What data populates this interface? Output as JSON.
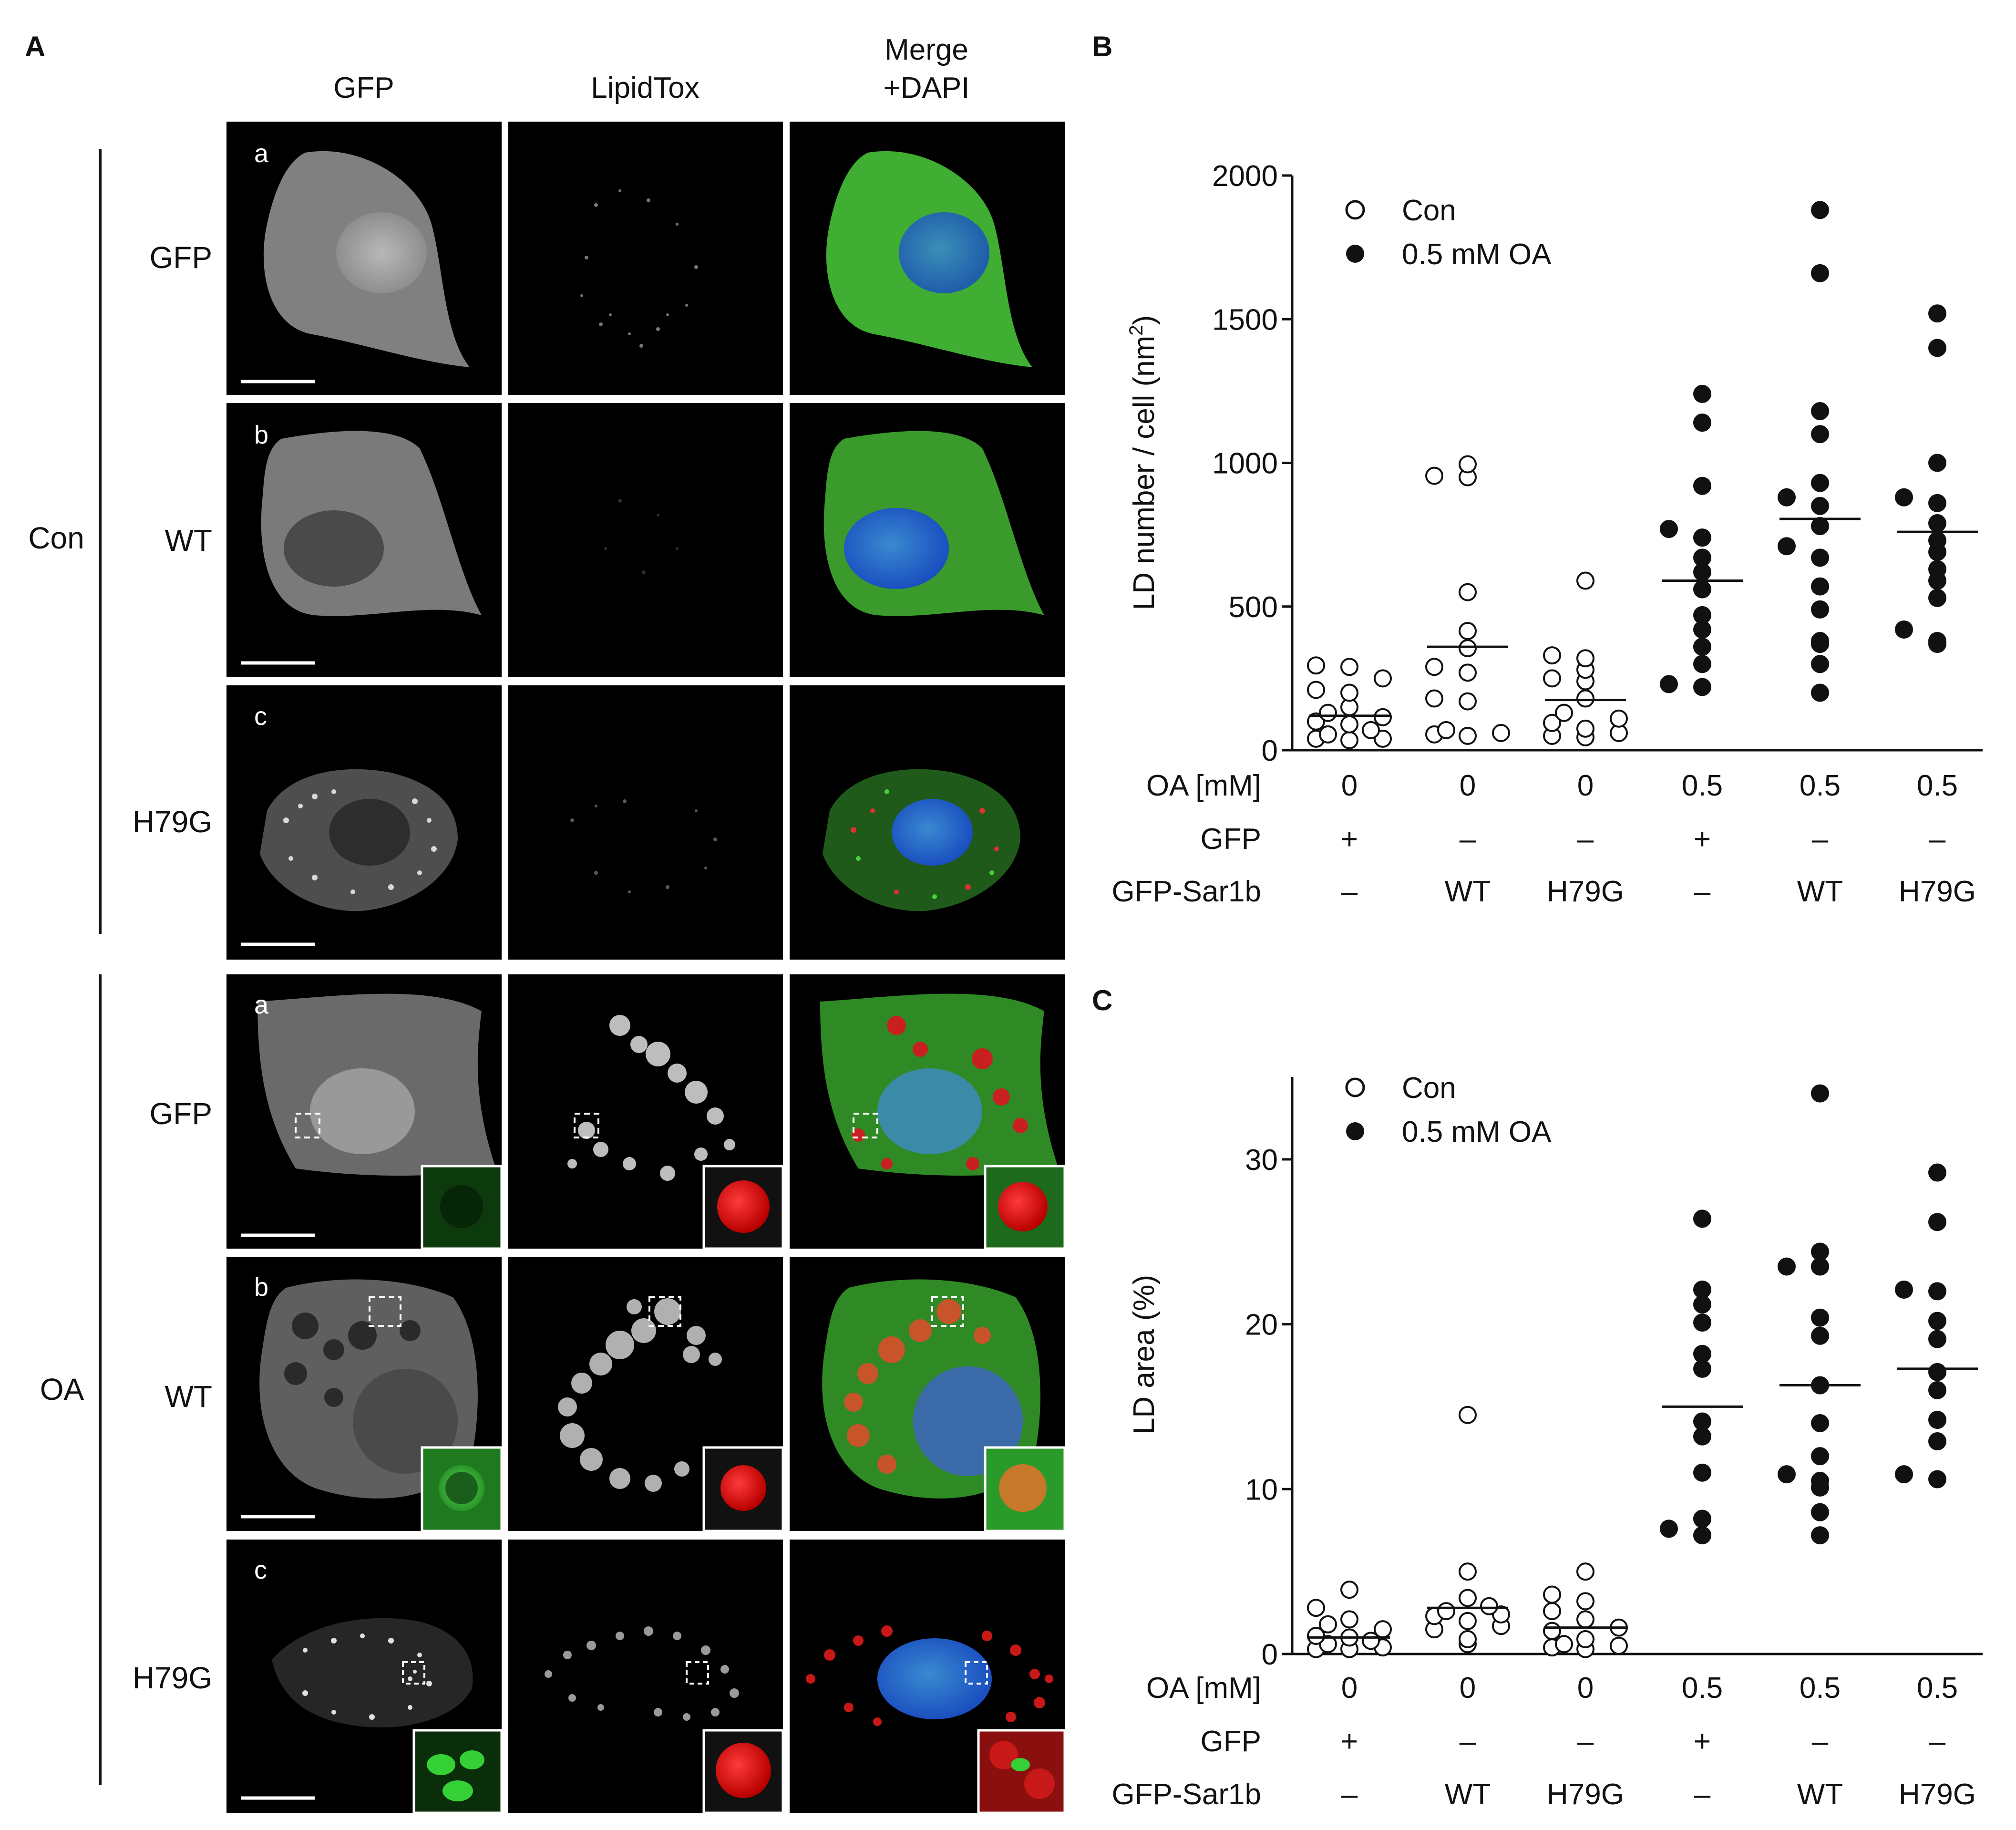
{
  "panelA": {
    "letter": "A",
    "col_headers": [
      "GFP",
      "LipidTox",
      "Merge +DAPI"
    ],
    "merge_header_lines": [
      "Merge",
      "+DAPI"
    ],
    "groups": [
      {
        "label": "Con",
        "rows": [
          {
            "sub": "a",
            "name": "GFP",
            "cell": "gfp_con"
          },
          {
            "sub": "b",
            "name": "WT",
            "cell": "wt_con"
          },
          {
            "sub": "c",
            "name": "H79G",
            "cell": "h79g_con"
          }
        ]
      },
      {
        "label": "OA",
        "rows": [
          {
            "sub": "a",
            "name": "GFP",
            "cell": "gfp_oa"
          },
          {
            "sub": "b",
            "name": "WT",
            "cell": "wt_oa"
          },
          {
            "sub": "c",
            "name": "H79G",
            "cell": "h79g_oa"
          }
        ]
      }
    ]
  },
  "chart_data": [
    {
      "panel": "B",
      "type": "scatter",
      "ylabel": "LD number / cell (nm²)",
      "ylabel_main": "LD number / cell (nm",
      "ylabel_sup": "2",
      "ylabel_close": ")",
      "ylim": [
        0,
        2000
      ],
      "yticks": [
        0,
        500,
        1000,
        1500,
        2000
      ],
      "legend": [
        "Con",
        "0.5 mM OA"
      ],
      "legend_position": "top-left",
      "table_rows": [
        {
          "label": "OA [mM]",
          "values": [
            "0",
            "0",
            "0",
            "0.5",
            "0.5",
            "0.5"
          ]
        },
        {
          "label": "GFP",
          "values": [
            "+",
            "–",
            "–",
            "+",
            "–",
            "–"
          ]
        },
        {
          "label": "GFP-Sar1b",
          "values": [
            "–",
            "WT",
            "H79G",
            "–",
            "WT",
            "H79G"
          ]
        }
      ],
      "groups": [
        {
          "filled": false,
          "mean": 120,
          "values": [
            295,
            290,
            250,
            210,
            200,
            150,
            130,
            115,
            100,
            90,
            70,
            55,
            40,
            40,
            35
          ]
        },
        {
          "filled": false,
          "mean": 360,
          "values": [
            995,
            955,
            950,
            550,
            415,
            355,
            290,
            270,
            180,
            170,
            70,
            60,
            55,
            50
          ]
        },
        {
          "filled": false,
          "mean": 175,
          "values": [
            590,
            330,
            320,
            280,
            250,
            240,
            180,
            130,
            110,
            95,
            75,
            60,
            50,
            45
          ]
        },
        {
          "filled": true,
          "mean": 590,
          "values": [
            1240,
            1140,
            920,
            770,
            740,
            670,
            620,
            560,
            470,
            420,
            360,
            300,
            230,
            220
          ]
        },
        {
          "filled": true,
          "mean": 805,
          "values": [
            1880,
            1660,
            1180,
            1100,
            930,
            880,
            850,
            780,
            710,
            670,
            570,
            490,
            380,
            370,
            300,
            200
          ]
        },
        {
          "filled": true,
          "mean": 760,
          "values": [
            1520,
            1400,
            1000,
            880,
            860,
            790,
            730,
            690,
            630,
            590,
            530,
            420,
            380,
            370
          ]
        }
      ]
    },
    {
      "panel": "C",
      "type": "scatter",
      "ylabel": "LD area (%)",
      "ylim": [
        0,
        35
      ],
      "yticks": [
        0,
        10,
        20,
        30
      ],
      "legend": [
        "Con",
        "0.5 mM OA"
      ],
      "legend_position": "top-left",
      "table_rows": [
        {
          "label": "OA [mM]",
          "values": [
            "0",
            "0",
            "0",
            "0.5",
            "0.5",
            "0.5"
          ]
        },
        {
          "label": "GFP",
          "values": [
            "+",
            "–",
            "–",
            "+",
            "–",
            "–"
          ]
        },
        {
          "label": "GFP-Sar1b",
          "values": [
            "–",
            "WT",
            "H79G",
            "–",
            "WT",
            "H79G"
          ]
        }
      ],
      "groups": [
        {
          "filled": false,
          "mean": 1.0,
          "values": [
            3.9,
            2.8,
            2.1,
            1.8,
            1.5,
            1.1,
            1.0,
            0.8,
            0.6,
            0.4,
            0.3,
            0.3
          ]
        },
        {
          "filled": false,
          "mean": 2.8,
          "values": [
            14.5,
            5.0,
            3.4,
            2.9,
            2.6,
            2.4,
            2.3,
            2.0,
            1.7,
            1.5,
            0.9,
            0.6
          ]
        },
        {
          "filled": false,
          "mean": 1.6,
          "values": [
            5.0,
            3.6,
            3.2,
            2.6,
            2.1,
            1.6,
            1.4,
            0.9,
            0.6,
            0.5,
            0.4,
            0.3
          ]
        },
        {
          "filled": true,
          "mean": 15.0,
          "values": [
            26.4,
            22.1,
            21.2,
            20.1,
            18.2,
            17.3,
            14.1,
            13.2,
            11.0,
            8.2,
            7.6,
            7.2
          ]
        },
        {
          "filled": true,
          "mean": 16.3,
          "values": [
            34.0,
            24.4,
            23.5,
            23.5,
            20.4,
            19.3,
            16.3,
            14.0,
            12.0,
            10.9,
            10.5,
            10.1,
            8.6,
            7.2
          ]
        },
        {
          "filled": true,
          "mean": 17.3,
          "values": [
            29.2,
            26.2,
            22.1,
            22.0,
            20.2,
            19.1,
            17.1,
            16.0,
            14.2,
            12.9,
            10.9,
            10.6
          ]
        }
      ]
    }
  ]
}
